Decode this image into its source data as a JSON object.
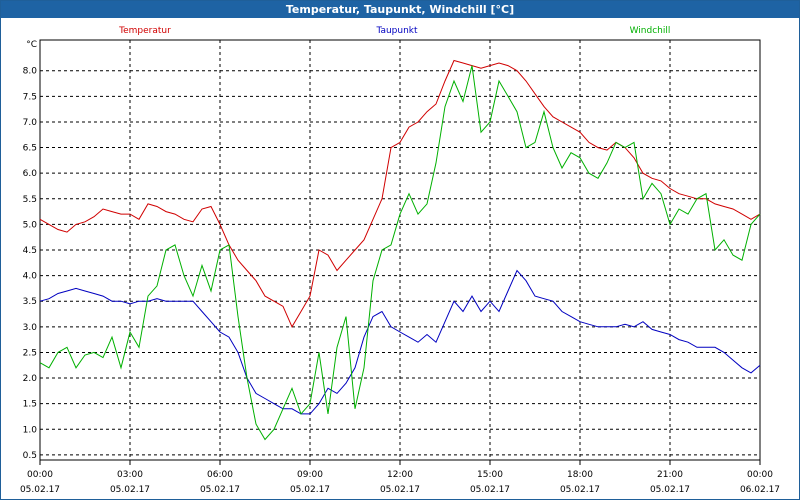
{
  "window": {
    "title": "Temperatur, Taupunkt, Windchill [°C]"
  },
  "chart_data": {
    "type": "line",
    "title": "Temperatur, Taupunkt, Windchill [°C]",
    "ylabel": "°C",
    "ylim": [
      0.4,
      8.6
    ],
    "xlim": [
      0,
      24
    ],
    "yticks": [
      "8.0",
      "7.5",
      "7.0",
      "6.5",
      "6.0",
      "5.5",
      "5.0",
      "4.5",
      "4.0",
      "3.5",
      "3.0",
      "2.5",
      "2.0",
      "1.5",
      "1.0",
      "0.5"
    ],
    "xticks": [
      {
        "time": "00:00",
        "date": "05.02.17"
      },
      {
        "time": "03:00",
        "date": "05.02.17"
      },
      {
        "time": "06:00",
        "date": "05.02.17"
      },
      {
        "time": "09:00",
        "date": "05.02.17"
      },
      {
        "time": "12:00",
        "date": "05.02.17"
      },
      {
        "time": "15:00",
        "date": "05.02.17"
      },
      {
        "time": "18:00",
        "date": "05.02.17"
      },
      {
        "time": "21:00",
        "date": "05.02.17"
      },
      {
        "time": "00:00",
        "date": "06.02.17"
      }
    ],
    "grid": true,
    "series": [
      {
        "name": "Temperatur",
        "color": "#d00000",
        "legend_pos": "left",
        "x": [
          0,
          0.3,
          0.6,
          0.9,
          1.2,
          1.5,
          1.8,
          2.1,
          2.4,
          2.7,
          3.0,
          3.3,
          3.6,
          3.9,
          4.2,
          4.5,
          4.8,
          5.1,
          5.4,
          5.7,
          6.0,
          6.3,
          6.6,
          6.9,
          7.2,
          7.5,
          7.8,
          8.1,
          8.4,
          8.7,
          9.0,
          9.3,
          9.6,
          9.9,
          10.2,
          10.5,
          10.8,
          11.1,
          11.4,
          11.7,
          12.0,
          12.3,
          12.6,
          12.9,
          13.2,
          13.5,
          13.8,
          14.1,
          14.4,
          14.7,
          15.0,
          15.3,
          15.6,
          15.9,
          16.2,
          16.5,
          16.8,
          17.1,
          17.4,
          17.7,
          18.0,
          18.3,
          18.6,
          18.9,
          19.2,
          19.5,
          19.8,
          20.1,
          20.4,
          20.7,
          21.0,
          21.3,
          21.6,
          21.9,
          22.2,
          22.5,
          22.8,
          23.1,
          23.4,
          23.7,
          24.0
        ],
        "values": [
          5.1,
          5.0,
          4.9,
          4.85,
          5.0,
          5.05,
          5.15,
          5.3,
          5.25,
          5.2,
          5.2,
          5.1,
          5.4,
          5.35,
          5.25,
          5.2,
          5.1,
          5.05,
          5.3,
          5.35,
          5.0,
          4.6,
          4.3,
          4.1,
          3.9,
          3.6,
          3.5,
          3.4,
          3.0,
          3.3,
          3.6,
          4.5,
          4.4,
          4.1,
          4.3,
          4.5,
          4.7,
          5.1,
          5.5,
          6.5,
          6.6,
          6.9,
          7.0,
          7.2,
          7.35,
          7.8,
          8.2,
          8.15,
          8.1,
          8.05,
          8.1,
          8.15,
          8.1,
          8.0,
          7.8,
          7.55,
          7.3,
          7.1,
          7.0,
          6.9,
          6.8,
          6.6,
          6.5,
          6.45,
          6.6,
          6.5,
          6.3,
          6.0,
          5.9,
          5.85,
          5.7,
          5.6,
          5.55,
          5.5,
          5.5,
          5.4,
          5.35,
          5.3,
          5.2,
          5.1,
          5.2
        ]
      },
      {
        "name": "Taupunkt",
        "color": "#0000c0",
        "legend_pos": "center",
        "x": [
          0,
          0.3,
          0.6,
          0.9,
          1.2,
          1.5,
          1.8,
          2.1,
          2.4,
          2.7,
          3.0,
          3.3,
          3.6,
          3.9,
          4.2,
          4.5,
          4.8,
          5.1,
          5.4,
          5.7,
          6.0,
          6.3,
          6.6,
          6.9,
          7.2,
          7.5,
          7.8,
          8.1,
          8.4,
          8.7,
          9.0,
          9.3,
          9.6,
          9.9,
          10.2,
          10.5,
          10.8,
          11.1,
          11.4,
          11.7,
          12.0,
          12.3,
          12.6,
          12.9,
          13.2,
          13.5,
          13.8,
          14.1,
          14.4,
          14.7,
          15.0,
          15.3,
          15.6,
          15.9,
          16.2,
          16.5,
          16.8,
          17.1,
          17.4,
          17.7,
          18.0,
          18.3,
          18.6,
          18.9,
          19.2,
          19.5,
          19.8,
          20.1,
          20.4,
          20.7,
          21.0,
          21.3,
          21.6,
          21.9,
          22.2,
          22.5,
          22.8,
          23.1,
          23.4,
          23.7,
          24.0
        ],
        "values": [
          3.5,
          3.55,
          3.65,
          3.7,
          3.75,
          3.7,
          3.65,
          3.6,
          3.5,
          3.5,
          3.45,
          3.5,
          3.5,
          3.55,
          3.5,
          3.5,
          3.5,
          3.5,
          3.3,
          3.1,
          2.9,
          2.8,
          2.5,
          2.0,
          1.7,
          1.6,
          1.5,
          1.4,
          1.4,
          1.3,
          1.3,
          1.5,
          1.8,
          1.7,
          1.9,
          2.2,
          2.8,
          3.2,
          3.3,
          3.0,
          2.9,
          2.8,
          2.7,
          2.85,
          2.7,
          3.1,
          3.5,
          3.3,
          3.6,
          3.3,
          3.5,
          3.3,
          3.7,
          4.1,
          3.9,
          3.6,
          3.55,
          3.5,
          3.3,
          3.2,
          3.1,
          3.05,
          3.0,
          3.0,
          3.0,
          3.05,
          3.0,
          3.1,
          2.95,
          2.9,
          2.85,
          2.75,
          2.7,
          2.6,
          2.6,
          2.6,
          2.5,
          2.35,
          2.2,
          2.1,
          2.25
        ]
      },
      {
        "name": "Windchill",
        "color": "#00b000",
        "legend_pos": "right",
        "x": [
          0,
          0.3,
          0.6,
          0.9,
          1.2,
          1.5,
          1.8,
          2.1,
          2.4,
          2.7,
          3.0,
          3.3,
          3.6,
          3.9,
          4.2,
          4.5,
          4.8,
          5.1,
          5.4,
          5.7,
          6.0,
          6.3,
          6.6,
          6.9,
          7.2,
          7.5,
          7.8,
          8.1,
          8.4,
          8.7,
          9.0,
          9.3,
          9.6,
          9.9,
          10.2,
          10.5,
          10.8,
          11.1,
          11.4,
          11.7,
          12.0,
          12.3,
          12.6,
          12.9,
          13.2,
          13.5,
          13.8,
          14.1,
          14.4,
          14.7,
          15.0,
          15.3,
          15.6,
          15.9,
          16.2,
          16.5,
          16.8,
          17.1,
          17.4,
          17.7,
          18.0,
          18.3,
          18.6,
          18.9,
          19.2,
          19.5,
          19.8,
          20.1,
          20.4,
          20.7,
          21.0,
          21.3,
          21.6,
          21.9,
          22.2,
          22.5,
          22.8,
          23.1,
          23.4,
          23.7,
          24.0
        ],
        "values": [
          2.3,
          2.2,
          2.5,
          2.6,
          2.2,
          2.45,
          2.5,
          2.4,
          2.8,
          2.2,
          2.9,
          2.6,
          3.6,
          3.8,
          4.5,
          4.6,
          4.0,
          3.6,
          4.2,
          3.7,
          4.5,
          4.6,
          3.2,
          2.0,
          1.1,
          0.8,
          1.0,
          1.4,
          1.8,
          1.3,
          1.5,
          2.5,
          1.3,
          2.6,
          3.2,
          1.4,
          2.2,
          3.9,
          4.5,
          4.6,
          5.2,
          5.6,
          5.2,
          5.4,
          6.2,
          7.3,
          7.8,
          7.4,
          8.1,
          6.8,
          7.0,
          7.8,
          7.5,
          7.2,
          6.5,
          6.6,
          7.2,
          6.5,
          6.1,
          6.4,
          6.3,
          6.0,
          5.9,
          6.2,
          6.6,
          6.5,
          6.6,
          5.5,
          5.8,
          5.6,
          5.0,
          5.3,
          5.2,
          5.5,
          5.6,
          4.5,
          4.7,
          4.4,
          4.3,
          5.0,
          5.2
        ]
      }
    ]
  }
}
